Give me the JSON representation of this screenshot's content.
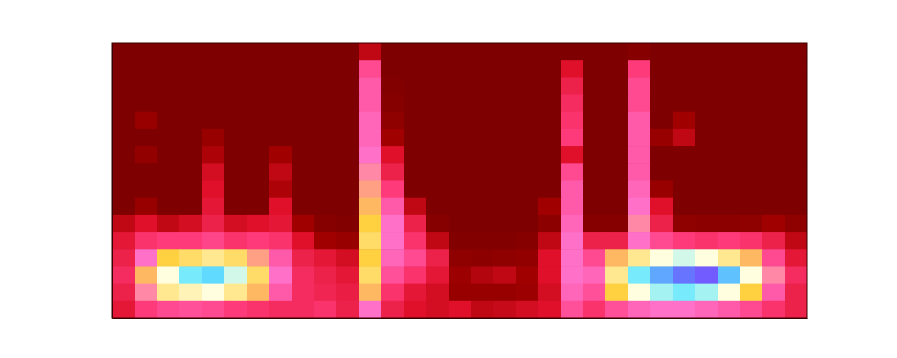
{
  "chart_data": {
    "type": "heatmap",
    "tick_labels": false,
    "xlim": [
      0,
      31
    ],
    "ylim": [
      0,
      16
    ],
    "zlim": [
      0,
      100
    ],
    "cells": [
      [
        10,
        10,
        10,
        10,
        10,
        10,
        10,
        10,
        10,
        10,
        10,
        35,
        10,
        10,
        10,
        10,
        10,
        10,
        10,
        10,
        10,
        10,
        10,
        15,
        10,
        10,
        10,
        10,
        10,
        10,
        10
      ],
      [
        10,
        10,
        10,
        10,
        10,
        10,
        10,
        10,
        10,
        10,
        10,
        55,
        10,
        10,
        10,
        10,
        10,
        10,
        10,
        10,
        40,
        10,
        10,
        52,
        10,
        10,
        10,
        10,
        10,
        10,
        10
      ],
      [
        10,
        10,
        10,
        10,
        10,
        10,
        10,
        10,
        10,
        10,
        10,
        58,
        12,
        10,
        10,
        10,
        10,
        10,
        10,
        10,
        45,
        10,
        10,
        55,
        10,
        10,
        10,
        10,
        10,
        10,
        10
      ],
      [
        10,
        10,
        10,
        10,
        10,
        10,
        10,
        10,
        10,
        10,
        10,
        58,
        15,
        10,
        10,
        10,
        10,
        10,
        10,
        10,
        48,
        10,
        10,
        55,
        10,
        10,
        10,
        10,
        10,
        10,
        10
      ],
      [
        10,
        25,
        10,
        10,
        10,
        10,
        10,
        10,
        10,
        10,
        10,
        60,
        20,
        10,
        10,
        10,
        10,
        10,
        10,
        10,
        50,
        10,
        10,
        58,
        10,
        30,
        10,
        10,
        10,
        10,
        10
      ],
      [
        10,
        10,
        10,
        10,
        25,
        10,
        10,
        10,
        10,
        10,
        10,
        60,
        30,
        10,
        10,
        10,
        10,
        10,
        10,
        10,
        52,
        10,
        10,
        58,
        25,
        35,
        10,
        10,
        10,
        10,
        10
      ],
      [
        10,
        22,
        10,
        10,
        32,
        10,
        10,
        30,
        10,
        10,
        10,
        62,
        40,
        10,
        10,
        10,
        10,
        10,
        10,
        10,
        40,
        10,
        10,
        58,
        10,
        10,
        10,
        10,
        10,
        10,
        10
      ],
      [
        10,
        10,
        10,
        10,
        38,
        10,
        10,
        35,
        10,
        10,
        10,
        64,
        45,
        10,
        10,
        10,
        10,
        10,
        10,
        10,
        55,
        10,
        10,
        58,
        10,
        10,
        10,
        10,
        10,
        10,
        10
      ],
      [
        10,
        10,
        10,
        10,
        40,
        10,
        10,
        32,
        10,
        10,
        10,
        66,
        52,
        10,
        10,
        10,
        10,
        10,
        10,
        10,
        58,
        10,
        10,
        60,
        25,
        10,
        10,
        10,
        10,
        10,
        10
      ],
      [
        10,
        25,
        10,
        10,
        42,
        10,
        10,
        40,
        10,
        10,
        10,
        68,
        58,
        35,
        10,
        10,
        10,
        10,
        10,
        30,
        58,
        10,
        10,
        62,
        40,
        10,
        10,
        10,
        10,
        10,
        10
      ],
      [
        35,
        40,
        35,
        38,
        45,
        38,
        40,
        42,
        30,
        15,
        12,
        70,
        62,
        45,
        15,
        10,
        10,
        10,
        10,
        18,
        60,
        15,
        15,
        64,
        45,
        20,
        18,
        18,
        20,
        30,
        20
      ],
      [
        42,
        50,
        52,
        52,
        54,
        50,
        52,
        50,
        40,
        30,
        25,
        72,
        62,
        50,
        35,
        12,
        12,
        12,
        15,
        35,
        62,
        45,
        45,
        62,
        55,
        52,
        50,
        52,
        50,
        45,
        35
      ],
      [
        45,
        62,
        70,
        72,
        74,
        72,
        66,
        58,
        45,
        42,
        38,
        70,
        60,
        55,
        45,
        20,
        18,
        20,
        22,
        40,
        62,
        55,
        68,
        74,
        78,
        80,
        78,
        74,
        68,
        55,
        42
      ],
      [
        48,
        68,
        78,
        84,
        86,
        80,
        72,
        62,
        48,
        45,
        42,
        72,
        56,
        50,
        42,
        28,
        33,
        35,
        30,
        40,
        62,
        60,
        74,
        84,
        90,
        94,
        96,
        88,
        78,
        64,
        48
      ],
      [
        45,
        64,
        74,
        76,
        78,
        74,
        68,
        58,
        48,
        46,
        44,
        68,
        50,
        42,
        38,
        25,
        25,
        25,
        28,
        38,
        60,
        56,
        70,
        78,
        82,
        84,
        82,
        78,
        70,
        58,
        45
      ],
      [
        42,
        52,
        55,
        56,
        55,
        52,
        50,
        48,
        48,
        50,
        45,
        62,
        45,
        40,
        38,
        40,
        35,
        36,
        38,
        40,
        56,
        50,
        56,
        60,
        62,
        62,
        60,
        58,
        55,
        50,
        45
      ]
    ]
  }
}
